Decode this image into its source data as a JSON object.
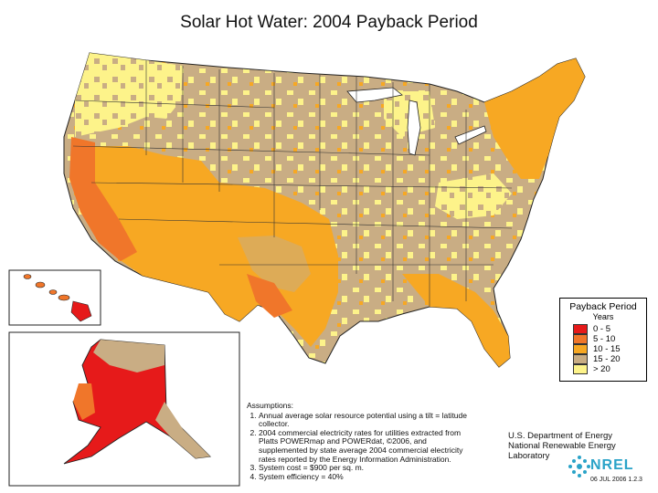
{
  "title": "Solar Hot Water:  2004 Payback Period",
  "legend": {
    "title": "Payback Period",
    "subtitle": "Years",
    "items": [
      {
        "label": "0  -  5",
        "color": "#e61a1a"
      },
      {
        "label": "5  -  10",
        "color": "#f0762a"
      },
      {
        "label": "10  -  15",
        "color": "#f7a823"
      },
      {
        "label": "15  -  20",
        "color": "#c9ad84"
      },
      {
        "label": "> 20",
        "color": "#fdf38a"
      }
    ]
  },
  "assumptions": {
    "heading": "Assumptions:",
    "items": [
      "Annual average solar resource potential using a tilt = latitude collector.",
      "2004 commercial electricity rates for utilities extracted from Platts POWERmap and POWERdat, ©2006, and supplemented by state average 2004 commercial electricity rates reported by the Energy Information Administration.",
      "System cost = $900 per sq. m.",
      "System efficiency = 40%"
    ]
  },
  "credit": {
    "line1": "U.S. Department of Energy",
    "line2": "National Renewable Energy Laboratory",
    "logo_text": "NREL",
    "date_code": "06 JUL 2006 1.2.3"
  }
}
